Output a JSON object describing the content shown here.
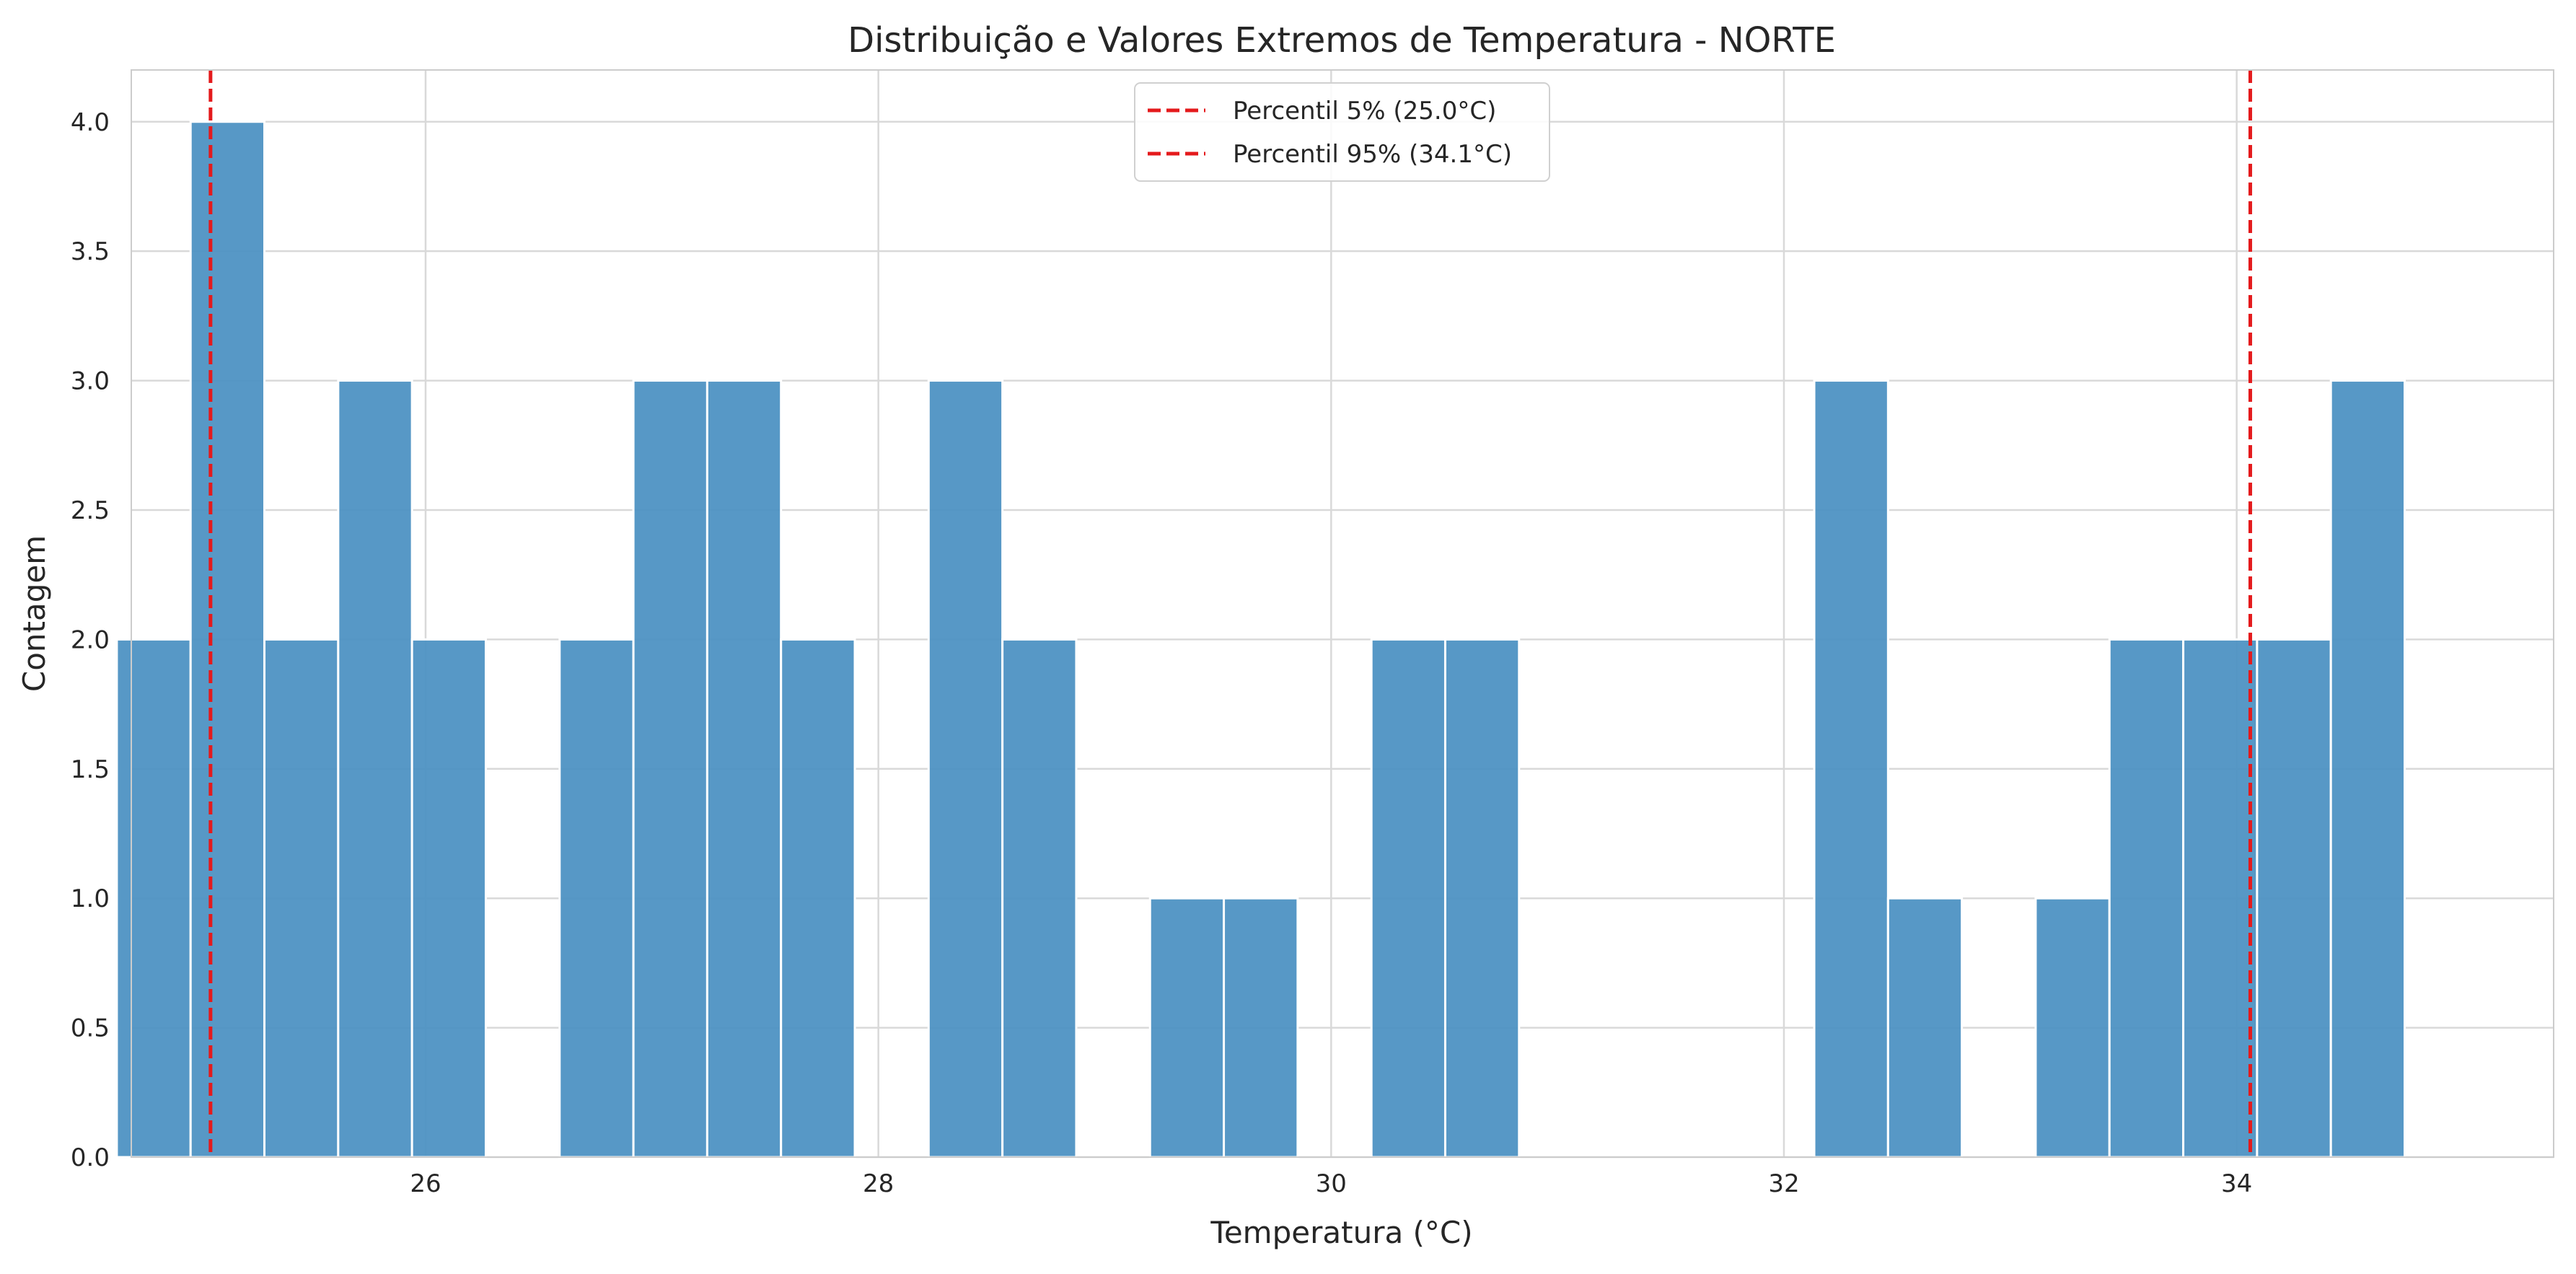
{
  "chart_data": {
    "type": "bar",
    "title": "Distribuição e Valores Extremos de Temperatura - NORTE",
    "xlabel": "Temperatura (°C)",
    "ylabel": "Contagem",
    "xlim": [
      24.7,
      35.4
    ],
    "ylim": [
      0,
      4.2
    ],
    "x_ticks": [
      26,
      28,
      30,
      32,
      34
    ],
    "y_ticks": [
      0.0,
      0.5,
      1.0,
      1.5,
      2.0,
      2.5,
      3.0,
      3.5,
      4.0
    ],
    "x_tick_labels": [
      "26",
      "28",
      "30",
      "32",
      "34"
    ],
    "y_tick_labels": [
      "0.0",
      "0.5",
      "1.0",
      "1.5",
      "2.0",
      "2.5",
      "3.0",
      "3.5",
      "4.0"
    ],
    "grid": true,
    "bin_start": 24.636,
    "bin_width": 0.326,
    "counts": [
      2,
      4,
      2,
      3,
      2,
      0,
      2,
      3,
      3,
      2,
      0,
      3,
      2,
      0,
      1,
      1,
      0,
      2,
      2,
      0,
      0,
      0,
      0,
      3,
      1,
      0,
      1,
      2,
      2,
      2,
      3
    ],
    "bar_color": "#4A90C2",
    "reference_lines": [
      {
        "label": "Percentil 5% (25.0°C)",
        "x": 25.05,
        "color": "#e41a1c",
        "style": "dashed"
      },
      {
        "label": "Percentil 95% (34.1°C)",
        "x": 34.06,
        "color": "#e41a1c",
        "style": "dashed"
      }
    ],
    "legend_position": "top-center"
  }
}
